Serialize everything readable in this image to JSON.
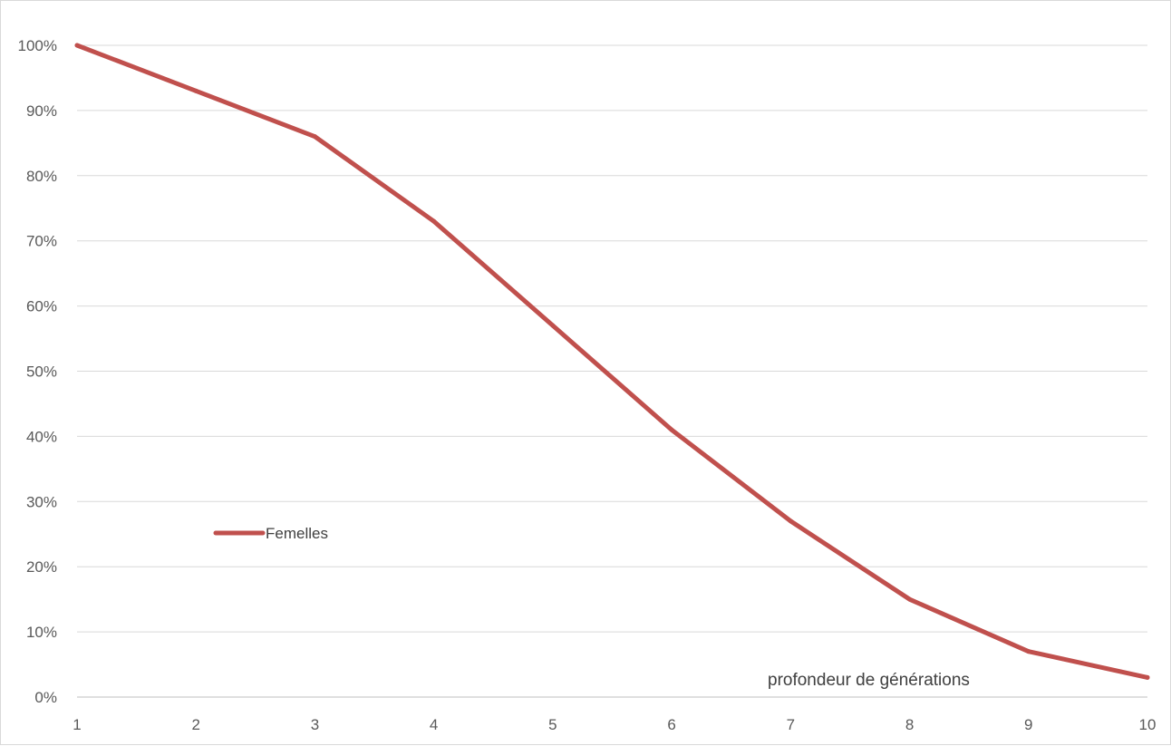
{
  "chart_data": {
    "type": "line",
    "x": [
      1,
      2,
      3,
      4,
      5,
      6,
      7,
      8,
      9,
      10
    ],
    "series": [
      {
        "name": "Femelles",
        "values": [
          100,
          93,
          86,
          73,
          57,
          41,
          27,
          15,
          7,
          3
        ],
        "color": "#c0504d"
      }
    ],
    "xlabel": "profondeur de générations",
    "ylabel": "",
    "title": "",
    "ylim": [
      0,
      100
    ],
    "xlim": [
      1,
      10
    ],
    "y_ticks": [
      "0%",
      "10%",
      "20%",
      "30%",
      "40%",
      "50%",
      "60%",
      "70%",
      "80%",
      "90%",
      "100%"
    ],
    "x_ticks": [
      "1",
      "2",
      "3",
      "4",
      "5",
      "6",
      "7",
      "8",
      "9",
      "10"
    ],
    "grid": true,
    "legend_position": "left-inside"
  }
}
